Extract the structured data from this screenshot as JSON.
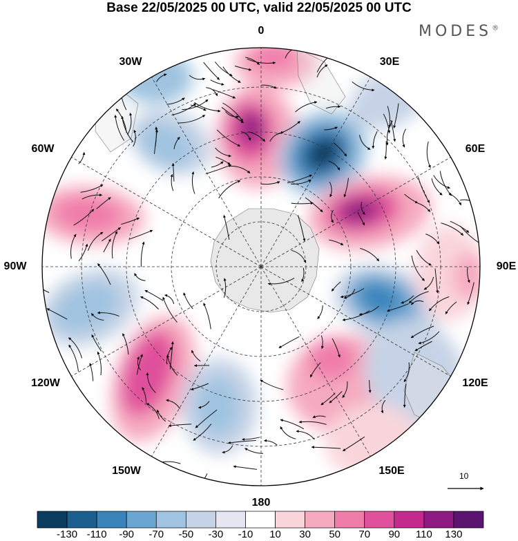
{
  "title": "Base 22/05/2025 00 UTC, valid 22/05/2025 00 UTC",
  "brand": "MODES",
  "brand_mark": "®",
  "longitude_labels": {
    "lon_0": "0",
    "lon_30e": "30E",
    "lon_60e": "60E",
    "lon_90e": "90E",
    "lon_120e": "120E",
    "lon_150e": "150E",
    "lon_180": "180",
    "lon_150w": "150W",
    "lon_120w": "120W",
    "lon_90w": "90W",
    "lon_60w": "60W",
    "lon_30w": "30W"
  },
  "vector_scale_label": "10",
  "colorbar": {
    "labels": [
      "-130",
      "-110",
      "-90",
      "-70",
      "-50",
      "-30",
      "-10",
      "10",
      "30",
      "50",
      "70",
      "90",
      "110",
      "130"
    ],
    "colors": [
      "#0b3b5e",
      "#1c5f8e",
      "#3a84bb",
      "#6aa6d1",
      "#9fc3e0",
      "#c6d3e6",
      "#e4e7f1",
      "#ffffff",
      "#fad6dc",
      "#f6aabf",
      "#f07caa",
      "#e0509b",
      "#c42a8e",
      "#8e1a82",
      "#5b1470"
    ]
  },
  "map_colors": {
    "land": "#e4e4e4",
    "ocean_neutral": "#ffffff"
  }
}
